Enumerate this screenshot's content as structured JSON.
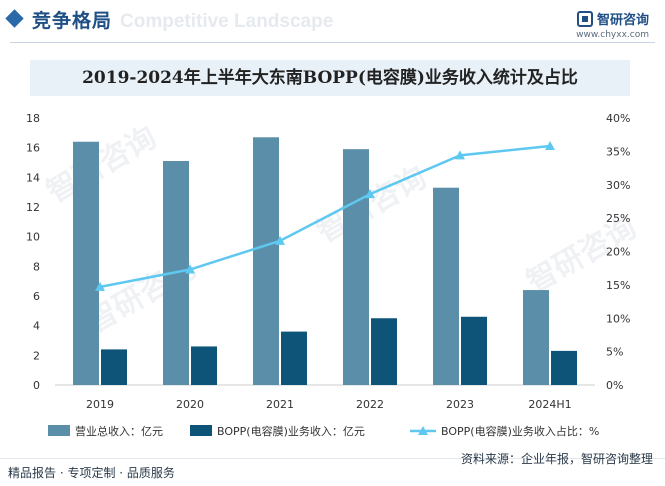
{
  "header": {
    "section_title": "竞争格局",
    "watermark_text": "Competitive Landscape",
    "brand_name": "智研咨询",
    "brand_url": "www.chyxx.com"
  },
  "footer": {
    "left_text": "精品报告 · 专项定制 · 品质服务",
    "source_text": "资料来源：企业年报，智研咨询整理"
  },
  "colors": {
    "total_bar": "#5b8ea8",
    "bopp_bar": "#0d5478",
    "share_line": "#5ec8f0"
  },
  "chart_data": {
    "type": "bar",
    "title": "2019-2024年上半年大东南BOPP(电容膜)业务收入统计及占比",
    "categories": [
      "2019",
      "2020",
      "2021",
      "2022",
      "2023",
      "2024H1"
    ],
    "series": [
      {
        "name": "营业总收入：亿元",
        "type": "bar",
        "axis": "left",
        "values": [
          16.4,
          15.1,
          16.7,
          15.9,
          13.3,
          6.4
        ]
      },
      {
        "name": "BOPP(电容膜)业务收入：亿元",
        "type": "bar",
        "axis": "left",
        "values": [
          2.4,
          2.6,
          3.6,
          4.5,
          4.6,
          2.3
        ]
      },
      {
        "name": "BOPP(电容膜)业务收入占比：%",
        "type": "line",
        "axis": "right",
        "values": [
          14.7,
          17.3,
          21.6,
          28.6,
          34.4,
          35.8
        ]
      }
    ],
    "ylim": [
      0,
      18
    ],
    "y_ticks": [
      0,
      2,
      4,
      6,
      8,
      10,
      12,
      14,
      16,
      18
    ],
    "y2lim": [
      0,
      40
    ],
    "y2_ticks": [
      "0%",
      "5%",
      "10%",
      "15%",
      "20%",
      "25%",
      "30%",
      "35%",
      "40%"
    ],
    "legend_position": "bottom"
  }
}
